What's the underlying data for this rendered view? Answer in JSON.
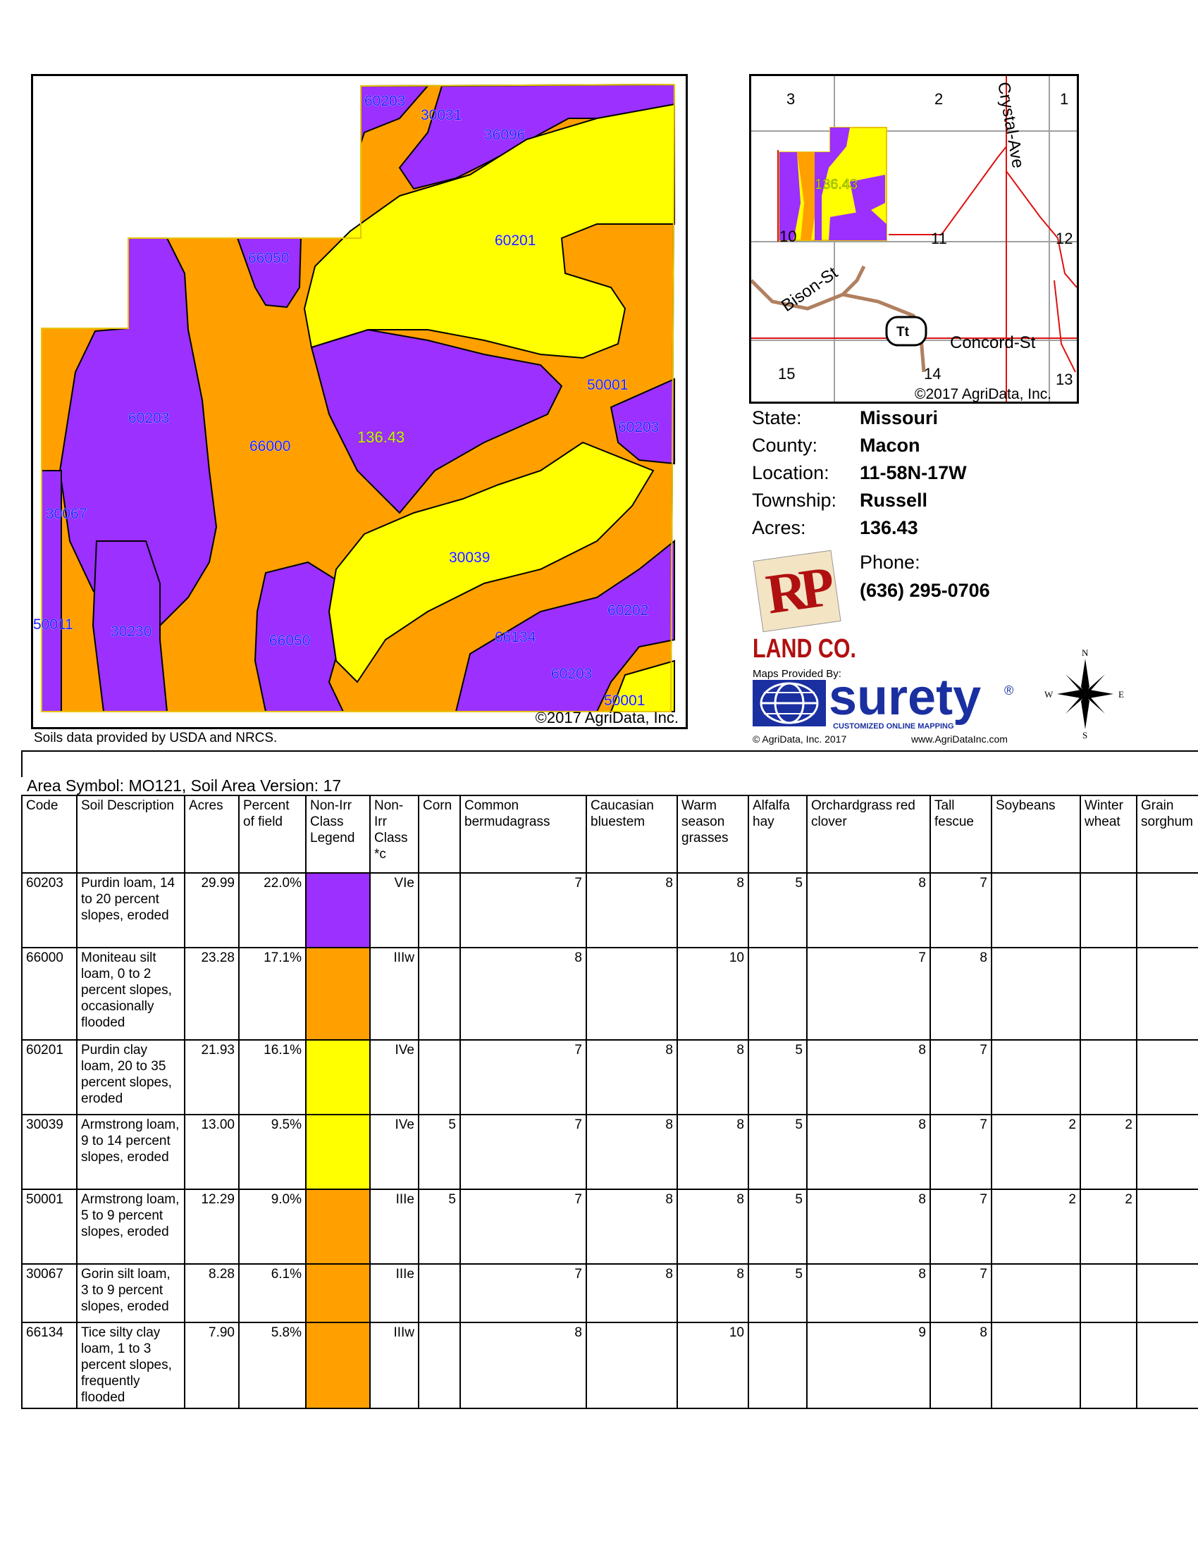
{
  "soil_map": {
    "field_acres_label": "136.43",
    "copyright": "©2017 AgriData, Inc.",
    "colors": {
      "purple": "#9B30FF",
      "orange": "#FFA000",
      "yellow": "#FFFF00",
      "boundary": "#000000",
      "field_outline": "#E6C400",
      "label_text": "#1A1AFF"
    },
    "labels": [
      "60203",
      "30031",
      "36096",
      "66050",
      "60201",
      "60203",
      "66000",
      "50001",
      "60203",
      "30067",
      "30039",
      "50011",
      "30230",
      "66050",
      "60202",
      "66134",
      "60203",
      "50001"
    ]
  },
  "soils_caption": "Soils data provided by USDA and NRCS.",
  "locator_map": {
    "section_numbers": [
      "3",
      "2",
      "1",
      "10",
      "11",
      "12",
      "15",
      "14",
      "13"
    ],
    "field_label": "136.43",
    "roads": [
      "Crystal-Ave",
      "Bison-St",
      "Concord-St"
    ],
    "highway_shield": "Tt",
    "copyright": "©2017 AgriData, Inc.",
    "road_color": "#E01010",
    "highway_color": "#B08060"
  },
  "info": {
    "state_label": "State:",
    "state": "Missouri",
    "county_label": "County:",
    "county": "Macon",
    "location_label": "Location:",
    "location": "11-58N-17W",
    "township_label": "Township:",
    "township": "Russell",
    "acres_label": "Acres:",
    "acres": "136.43",
    "phone_label": "Phone:",
    "phone": "(636) 295-0706"
  },
  "branding": {
    "logo_letters": "RP",
    "logo_text": "LAND CO.",
    "maps_provided": "Maps Provided By:",
    "surety": "surety",
    "surety_reg": "®",
    "surety_tag": "CUSTOMIZED ONLINE MAPPING",
    "agridata_copyright": "© AgriData, Inc. 2017",
    "website": "www.AgriDataInc.com",
    "compass": {
      "n": "N",
      "e": "E",
      "s": "S",
      "w": "W"
    },
    "logo_red": "#B01010",
    "surety_blue": "#1A2FA0"
  },
  "table": {
    "caption": "Area Symbol: MO121, Soil Area Version: 17",
    "headers": [
      "Code",
      "Soil Description",
      "Acres",
      "Percent of field",
      "Non-Irr Class Legend",
      "Non-Irr Class *c",
      "Corn",
      "Common bermudagrass",
      "Caucasian bluestem",
      "Warm season grasses",
      "Alfalfa hay",
      "Orchardgrass red clover",
      "Tall fescue",
      "Soybeans",
      "Winter wheat",
      "Grain sorghum"
    ],
    "rows": [
      {
        "code": "60203",
        "desc": "Purdin loam, 14 to 20 percent slopes, eroded",
        "acres": "29.99",
        "pct": "22.0%",
        "color": "#9B30FF",
        "cls": "VIe",
        "corn": "",
        "bermuda": "7",
        "bluestem": "8",
        "warm": "8",
        "alfalfa": "5",
        "orchard": "8",
        "fescue": "7",
        "soy": "",
        "wheat": "",
        "sorghum": ""
      },
      {
        "code": "66000",
        "desc": "Moniteau silt loam, 0 to 2 percent slopes, occasionally flooded",
        "acres": "23.28",
        "pct": "17.1%",
        "color": "#FFA000",
        "cls": "IIIw",
        "corn": "",
        "bermuda": "8",
        "bluestem": "",
        "warm": "10",
        "alfalfa": "",
        "orchard": "7",
        "fescue": "8",
        "soy": "",
        "wheat": "",
        "sorghum": ""
      },
      {
        "code": "60201",
        "desc": "Purdin clay loam, 20 to 35 percent slopes, eroded",
        "acres": "21.93",
        "pct": "16.1%",
        "color": "#FFFF00",
        "cls": "IVe",
        "corn": "",
        "bermuda": "7",
        "bluestem": "8",
        "warm": "8",
        "alfalfa": "5",
        "orchard": "8",
        "fescue": "7",
        "soy": "",
        "wheat": "",
        "sorghum": ""
      },
      {
        "code": "30039",
        "desc": "Armstrong loam, 9 to 14 percent slopes, eroded",
        "acres": "13.00",
        "pct": "9.5%",
        "color": "#FFFF00",
        "cls": "IVe",
        "corn": "5",
        "bermuda": "7",
        "bluestem": "8",
        "warm": "8",
        "alfalfa": "5",
        "orchard": "8",
        "fescue": "7",
        "soy": "2",
        "wheat": "2",
        "sorghum": ""
      },
      {
        "code": "50001",
        "desc": "Armstrong loam, 5 to 9 percent slopes, eroded",
        "acres": "12.29",
        "pct": "9.0%",
        "color": "#FFA000",
        "cls": "IIIe",
        "corn": "5",
        "bermuda": "7",
        "bluestem": "8",
        "warm": "8",
        "alfalfa": "5",
        "orchard": "8",
        "fescue": "7",
        "soy": "2",
        "wheat": "2",
        "sorghum": ""
      },
      {
        "code": "30067",
        "desc": "Gorin silt loam, 3 to 9 percent slopes, eroded",
        "acres": "8.28",
        "pct": "6.1%",
        "color": "#FFA000",
        "cls": "IIIe",
        "corn": "",
        "bermuda": "7",
        "bluestem": "8",
        "warm": "8",
        "alfalfa": "5",
        "orchard": "8",
        "fescue": "7",
        "soy": "",
        "wheat": "",
        "sorghum": ""
      },
      {
        "code": "66134",
        "desc": "Tice silty clay loam, 1 to 3 percent slopes, frequently flooded",
        "acres": "7.90",
        "pct": "5.8%",
        "color": "#FFA000",
        "cls": "IIIw",
        "corn": "",
        "bermuda": "8",
        "bluestem": "",
        "warm": "10",
        "alfalfa": "",
        "orchard": "9",
        "fescue": "8",
        "soy": "",
        "wheat": "",
        "sorghum": ""
      }
    ]
  }
}
